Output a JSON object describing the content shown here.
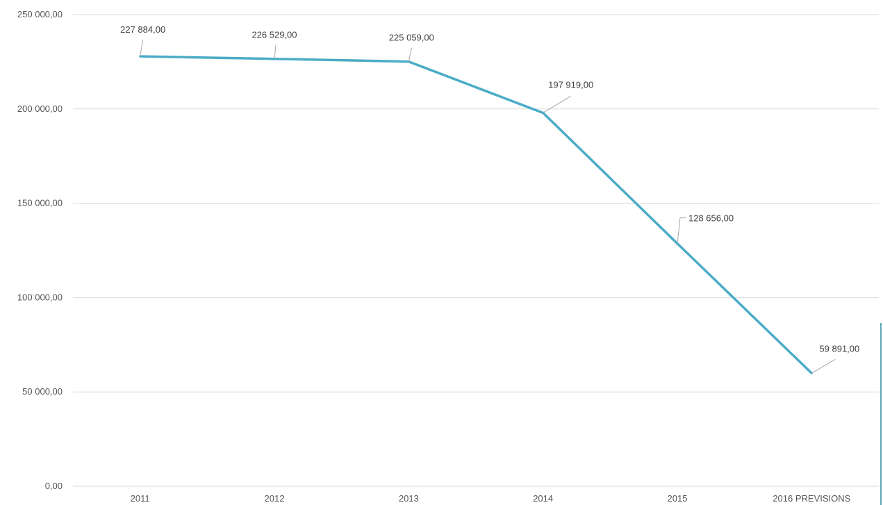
{
  "chart_data": {
    "type": "line",
    "categories": [
      "2011",
      "2012",
      "2013",
      "2014",
      "2015",
      "2016 PREVISIONS"
    ],
    "series": [
      {
        "values": [
          227884,
          226529,
          225059,
          197919,
          128656,
          59891
        ],
        "labels": [
          "227 884,00",
          "226 529,00",
          "225 059,00",
          "197 919,00",
          "128 656,00",
          "59 891,00"
        ],
        "color": "#4bacc6"
      }
    ],
    "y_ticks": [
      0,
      50000,
      100000,
      150000,
      200000,
      250000
    ],
    "y_tick_labels": [
      "0,00",
      "50 000,00",
      "100 000,00",
      "150 000,00",
      "200 000,00",
      "250 000,00"
    ],
    "ylim": [
      0,
      250000
    ],
    "grid": true,
    "legend": "none"
  }
}
